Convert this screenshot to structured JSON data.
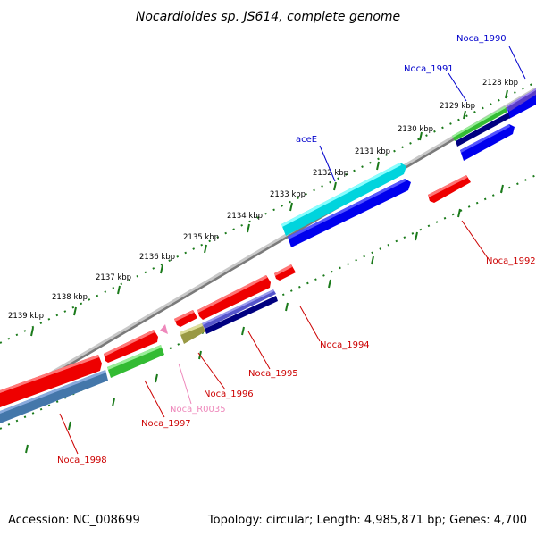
{
  "header": {
    "title": "Nocardioides sp. JS614, complete genome"
  },
  "footer": {
    "accession": "Accession: NC_008699",
    "summary": "Topology: circular; Length: 4,985,871 bp; Genes: 4,700"
  },
  "ticks": [
    "2128 kbp",
    "2129 kbp",
    "2130 kbp",
    "2131 kbp",
    "2132 kbp",
    "2133 kbp",
    "2134 kbp",
    "2135 kbp",
    "2136 kbp",
    "2137 kbp",
    "2138 kbp",
    "2139 kbp"
  ],
  "gene_labels": {
    "noca_1990": "Noca_1990",
    "noca_1991": "Noca_1991",
    "acee": "aceE",
    "noca_1992": "Noca_1992",
    "noca_1994": "Noca_1994",
    "noca_1995": "Noca_1995",
    "noca_1996": "Noca_1996",
    "noca_r0035": "Noca_R0035",
    "noca_1997": "Noca_1997",
    "noca_1998": "Noca_1998"
  },
  "colors": {
    "forward_label": "#0000cc",
    "reverse_label": "#cc0000",
    "rna_label": "#ee88bb",
    "backbone": "#888888",
    "tick": "#1a7a1a"
  }
}
